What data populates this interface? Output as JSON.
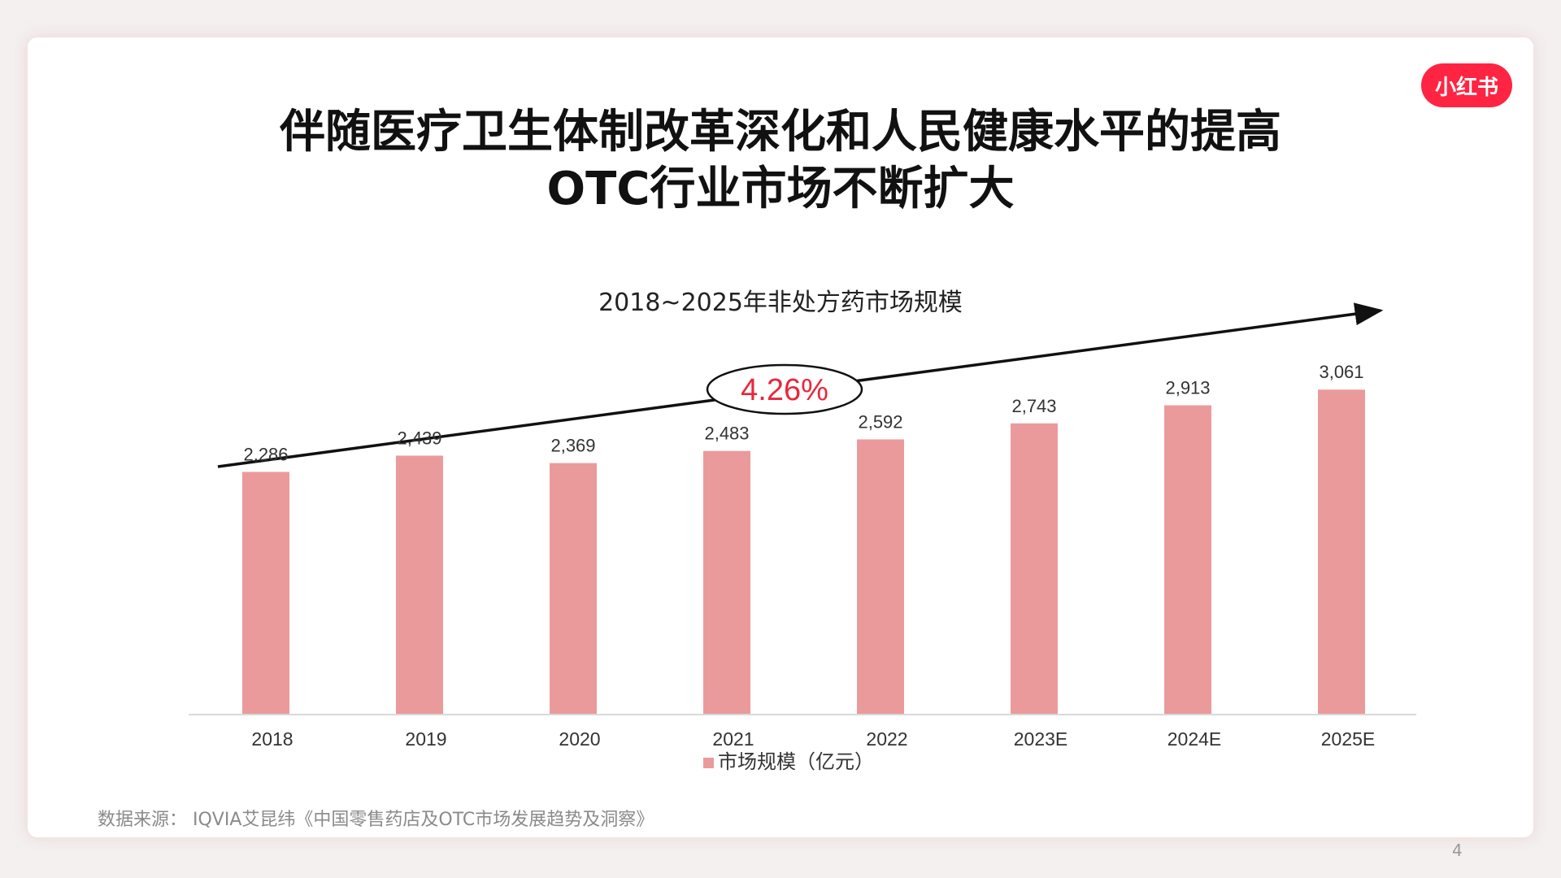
{
  "slide": {
    "title_line1": "伴随医疗卫生体制改革深化和人民健康水平的提高",
    "title_line2": "OTC行业市场不断扩大",
    "source": "数据来源：  IQVIA艾昆纬《中国零售药店及OTC市场发展趋势及洞察》",
    "page_number": "4",
    "logo_text": "小红书",
    "logo_color": "#ff2442"
  },
  "chart_data": {
    "type": "bar",
    "title": "2018~2025年非处方药市场规模",
    "categories": [
      "2018",
      "2019",
      "2020",
      "2021",
      "2022",
      "2023E",
      "2024E",
      "2025E"
    ],
    "series": [
      {
        "name": "市场规模（亿元）",
        "values": [
          2286,
          2439,
          2369,
          2483,
          2592,
          2743,
          2913,
          3061
        ],
        "labels": [
          "2,286",
          "2,439",
          "2,369",
          "2,483",
          "2,592",
          "2,743",
          "2,913",
          "3,061"
        ],
        "color": "#eb9a9c"
      }
    ],
    "growth_annotation": "4.26%",
    "growth_color": "#e8283c",
    "ylim": [
      0,
      3200
    ],
    "grid": false,
    "legend_position": "bottom"
  }
}
